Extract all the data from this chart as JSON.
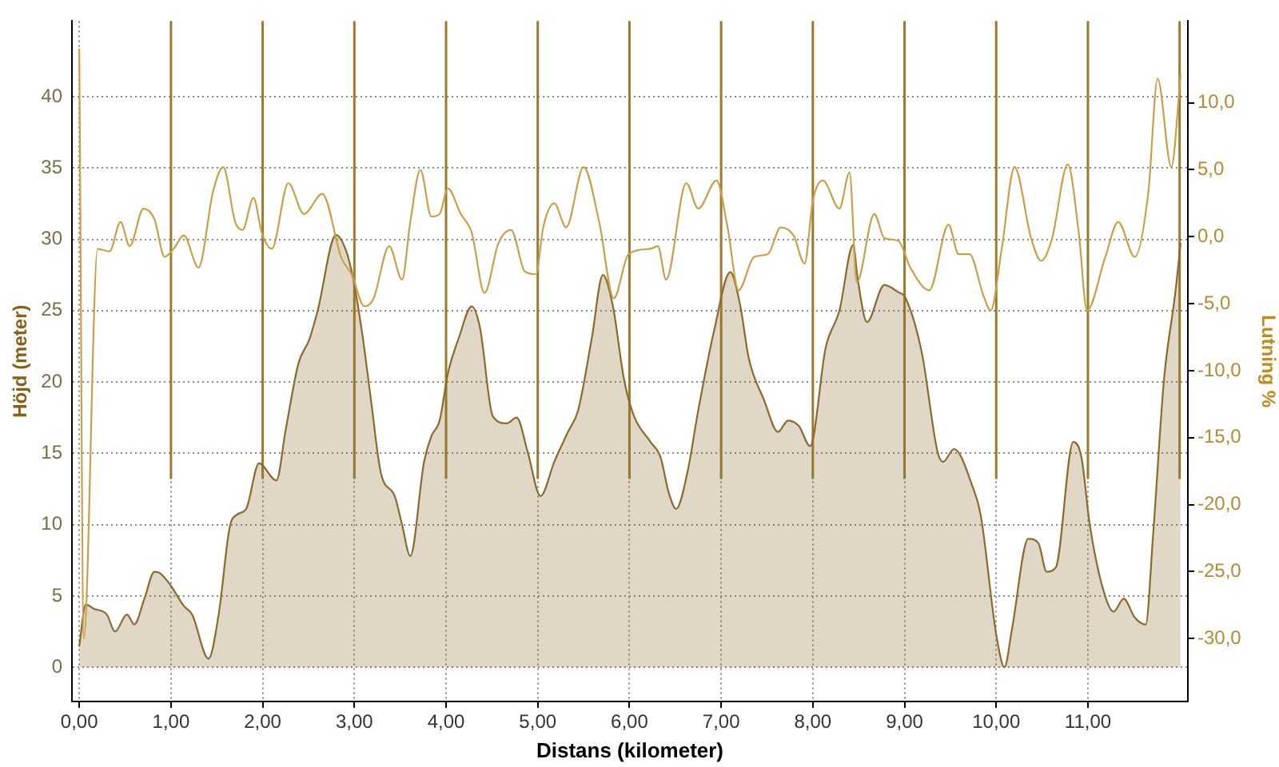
{
  "chart_data": {
    "type": "area",
    "xlabel": "Distans (kilometer)",
    "ylabel": "Höjd (meter)",
    "y2label": "Lutning %",
    "xlim": [
      -0.08,
      12.09
    ],
    "xticks": [
      {
        "value": 0,
        "label": "0,00"
      },
      {
        "value": 1,
        "label": "1,00"
      },
      {
        "value": 2,
        "label": "2,00"
      },
      {
        "value": 3,
        "label": "3,00"
      },
      {
        "value": 4,
        "label": "4,00"
      },
      {
        "value": 5,
        "label": "5,00"
      },
      {
        "value": 6,
        "label": "6,00"
      },
      {
        "value": 7,
        "label": "7,00"
      },
      {
        "value": 8,
        "label": "8,00"
      },
      {
        "value": 9,
        "label": "9,00"
      },
      {
        "value": 10,
        "label": "10,00"
      },
      {
        "value": 11,
        "label": "11,00"
      }
    ],
    "ylim": [
      -2.4,
      45.3
    ],
    "yticks": [
      0,
      5,
      10,
      15,
      20,
      25,
      30,
      35,
      40
    ],
    "y2lim": [
      -34.7,
      16.1
    ],
    "y2ticks": [
      {
        "value": 10,
        "label": "10,0"
      },
      {
        "value": 5,
        "label": "5,0"
      },
      {
        "value": 0,
        "label": "0,0"
      },
      {
        "value": -5,
        "label": "-5,0"
      },
      {
        "value": -10,
        "label": "-10,0"
      },
      {
        "value": -15,
        "label": "-15,0"
      },
      {
        "value": -20,
        "label": "-20,0"
      },
      {
        "value": -25,
        "label": "-25,0"
      },
      {
        "value": -30,
        "label": "-30,0"
      }
    ],
    "grid": true,
    "legend": false,
    "marker": "none",
    "series": [
      {
        "type": "area",
        "color": "#8c6a2e",
        "x": [
          0,
          0.07,
          0.16,
          0.3,
          0.39,
          0.52,
          0.6,
          0.71,
          0.82,
          0.88,
          0.99,
          1.14,
          1.23,
          1.41,
          1.52,
          1.64,
          1.72,
          1.82,
          1.96,
          2.15,
          2.25,
          2.39,
          2.51,
          2.6,
          2.8,
          2.92,
          3.0,
          3.09,
          3.18,
          3.29,
          3.44,
          3.52,
          3.61,
          3.76,
          3.84,
          3.93,
          4.02,
          4.14,
          4.28,
          4.37,
          4.51,
          4.66,
          4.77,
          4.89,
          5.03,
          5.18,
          5.33,
          5.44,
          5.59,
          5.71,
          5.82,
          5.94,
          6.05,
          6.23,
          6.34,
          6.43,
          6.51,
          6.63,
          6.75,
          6.92,
          7.1,
          7.21,
          7.3,
          7.47,
          7.62,
          7.73,
          7.85,
          7.97,
          8.14,
          8.29,
          8.44,
          8.49,
          8.59,
          8.78,
          8.93,
          9.01,
          9.19,
          9.36,
          9.42,
          9.54,
          9.74,
          9.83,
          10.0,
          10.09,
          10.17,
          10.35,
          10.46,
          10.55,
          10.65,
          10.84,
          10.93,
          11.02,
          11.16,
          11.28,
          11.39,
          11.51,
          11.63,
          11.71,
          11.83,
          11.95,
          12.01
        ],
        "values": [
          1.5,
          4.4,
          4.1,
          3.7,
          2.5,
          3.7,
          3.0,
          4.8,
          6.7,
          6.6,
          5.8,
          4.3,
          3.7,
          0.6,
          3.7,
          9.8,
          10.7,
          11.1,
          14.3,
          13.1,
          16.6,
          21.3,
          23.0,
          25.0,
          30.3,
          29.0,
          26.8,
          23.2,
          18.8,
          13.6,
          12.0,
          10.0,
          7.8,
          14.4,
          16.2,
          17.3,
          20.6,
          23.1,
          25.3,
          23.8,
          17.6,
          17.1,
          17.5,
          15.1,
          12.0,
          14.4,
          16.5,
          18.0,
          23.1,
          27.5,
          25.3,
          20.2,
          17.6,
          15.8,
          14.7,
          12.2,
          11.1,
          13.6,
          18.0,
          23.5,
          27.7,
          25.3,
          21.7,
          18.7,
          16.5,
          17.3,
          16.9,
          15.5,
          22.4,
          25.0,
          29.6,
          27.2,
          24.2,
          26.8,
          26.3,
          25.9,
          22.0,
          15.1,
          14.4,
          15.3,
          12.7,
          10.7,
          2.3,
          0.0,
          2.6,
          9.0,
          8.7,
          6.7,
          7.0,
          15.8,
          14.7,
          10.0,
          5.6,
          3.9,
          4.8,
          3.5,
          3.0,
          9.2,
          20.2,
          26.1,
          29.7
        ]
      },
      {
        "type": "line",
        "axis": "y2",
        "color": "#c9a04a",
        "x": [
          0,
          0.05,
          0.2,
          0.33,
          0.45,
          0.55,
          0.7,
          0.82,
          0.93,
          1.03,
          1.14,
          1.3,
          1.46,
          1.57,
          1.7,
          1.78,
          1.9,
          1.99,
          2.1,
          2.28,
          2.45,
          2.65,
          2.86,
          2.97,
          3.11,
          3.21,
          3.38,
          3.52,
          3.61,
          3.72,
          3.84,
          3.93,
          4.02,
          4.16,
          4.28,
          4.42,
          4.57,
          4.71,
          4.86,
          4.98,
          5.06,
          5.18,
          5.31,
          5.5,
          5.67,
          5.83,
          5.99,
          6.23,
          6.31,
          6.4,
          6.62,
          6.75,
          6.95,
          7.07,
          7.19,
          7.36,
          7.51,
          7.65,
          7.79,
          7.91,
          8.0,
          8.11,
          8.29,
          8.4,
          8.48,
          8.67,
          8.78,
          8.93,
          9.07,
          9.27,
          9.48,
          9.59,
          9.71,
          9.86,
          9.94,
          10.06,
          10.2,
          10.38,
          10.49,
          10.61,
          10.78,
          10.9,
          10.99,
          11.19,
          11.33,
          11.51,
          11.66,
          11.76,
          11.91,
          12.01
        ],
        "values": [
          14.0,
          -30.0,
          -0.9,
          -1.1,
          1.1,
          -0.7,
          2.1,
          1.3,
          -1.5,
          -0.9,
          0.1,
          -2.3,
          3.4,
          5.2,
          1.1,
          0.5,
          2.9,
          0.3,
          -0.9,
          4.0,
          1.7,
          3.2,
          -1.6,
          -2.8,
          -5.2,
          -4.6,
          -0.7,
          -3.2,
          1.1,
          5.0,
          1.5,
          1.7,
          3.6,
          1.7,
          0.3,
          -4.2,
          -0.5,
          0.5,
          -2.6,
          -2.8,
          0.7,
          2.5,
          0.7,
          5.2,
          1.1,
          -4.6,
          -1.3,
          -0.9,
          -0.7,
          -3.2,
          4.0,
          2.1,
          4.2,
          0.7,
          -4.0,
          -1.5,
          -1.3,
          0.7,
          0.1,
          -2.0,
          2.7,
          4.2,
          2.1,
          4.8,
          -3.4,
          1.7,
          -0.1,
          -0.3,
          -2.4,
          -4.0,
          0.9,
          -1.3,
          -1.3,
          -4.4,
          -5.5,
          -0.9,
          5.2,
          -0.1,
          -1.8,
          -0.1,
          5.4,
          0.3,
          -5.5,
          -1.5,
          1.1,
          -1.5,
          3.4,
          11.8,
          5.2,
          12.0
        ]
      }
    ],
    "ref_lines": [
      {
        "axis": "x",
        "value": 1,
        "color": "#9a7b2e"
      },
      {
        "axis": "x",
        "value": 2,
        "color": "#9a7b2e"
      },
      {
        "axis": "x",
        "value": 3,
        "color": "#9a7b2e"
      },
      {
        "axis": "x",
        "value": 4,
        "color": "#9a7b2e"
      },
      {
        "axis": "x",
        "value": 5,
        "color": "#9a7b2e"
      },
      {
        "axis": "x",
        "value": 6,
        "color": "#9a7b2e"
      },
      {
        "axis": "x",
        "value": 7,
        "color": "#9a7b2e"
      },
      {
        "axis": "x",
        "value": 8,
        "color": "#9a7b2e"
      },
      {
        "axis": "x",
        "value": 9,
        "color": "#9a7b2e"
      },
      {
        "axis": "x",
        "value": 10,
        "color": "#9a7b2e"
      },
      {
        "axis": "x",
        "value": 11,
        "color": "#9a7b2e"
      },
      {
        "axis": "x",
        "value": 12,
        "color": "#9a7b2e"
      }
    ]
  }
}
